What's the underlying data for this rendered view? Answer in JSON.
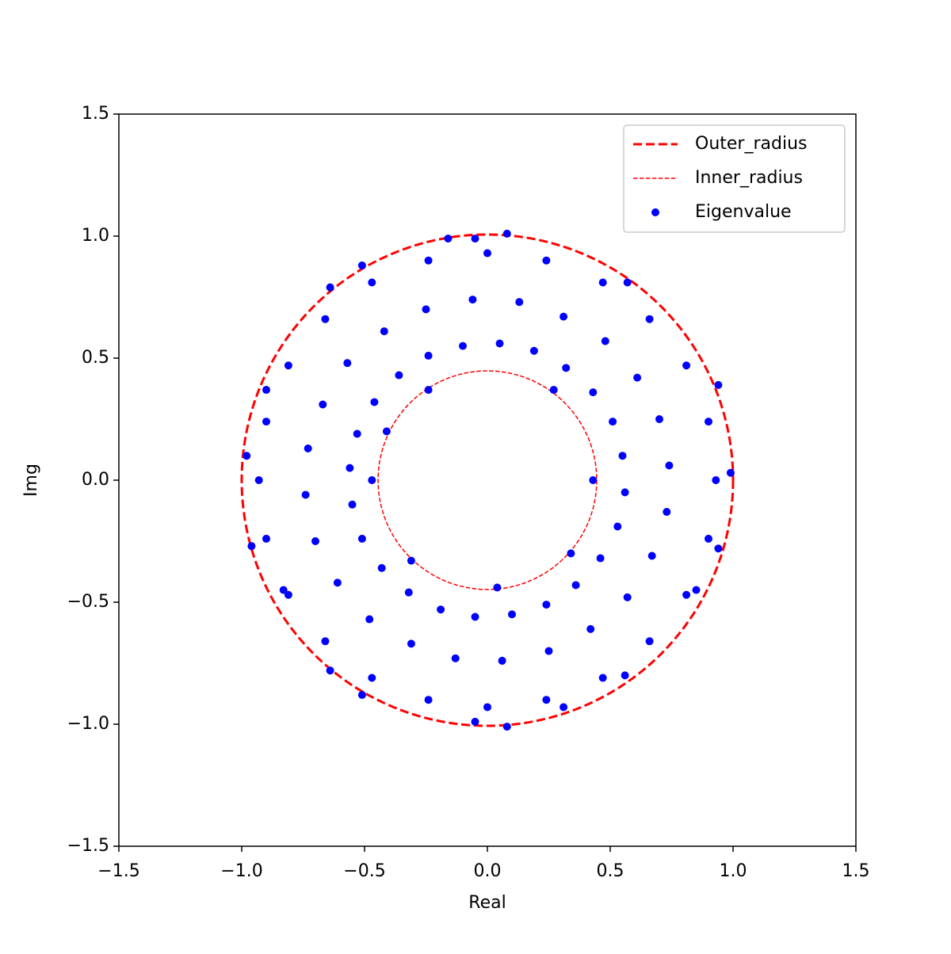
{
  "chart_data": {
    "type": "scatter",
    "xlabel": "Real",
    "ylabel": "Img",
    "xlim": [
      -1.5,
      1.5
    ],
    "ylim": [
      -1.5,
      1.5
    ],
    "xticks": [
      {
        "value": -1.5,
        "label": "−1.5"
      },
      {
        "value": -1,
        "label": "−1.0"
      },
      {
        "value": -0.5,
        "label": "−0.5"
      },
      {
        "value": 0,
        "label": "0.0"
      },
      0.5,
      {
        "value": 1,
        "label": "1.0"
      },
      1.5
    ],
    "yticks": [
      {
        "value": -1.5,
        "label": "−1.5"
      },
      {
        "value": -1,
        "label": "−1.0"
      },
      {
        "value": -0.5,
        "label": "−0.5"
      },
      {
        "value": 0,
        "label": "0.0"
      },
      0.5,
      {
        "value": 1,
        "label": "1.0"
      },
      1.5
    ],
    "legend": "upper right",
    "circles": [
      {
        "name": "Outer_radius",
        "color": "#ff0000",
        "radius": 1,
        "dash": "dashed",
        "width": 3
      },
      {
        "name": "Inner_radius",
        "color": "#ff0000",
        "radius": 0.445,
        "dash": "dashed",
        "width": 1.5
      }
    ],
    "series": [
      {
        "name": "Eigenvalue",
        "color": "#0000ff",
        "x": [
          -0.05,
          0.08,
          -0.16,
          -0.98,
          0.99,
          0.08,
          -0.05,
          -0.9,
          -0.64,
          -0.51,
          0.57,
          0.94,
          0.94,
          0.85,
          0.56,
          0.31,
          -0.51,
          -0.64,
          -0.83,
          -0.96,
          -0.41,
          -0.47,
          0.43,
          0.04,
          -0.24,
          0.27,
          0.34,
          -0.31,
          0.93,
          0.9,
          0.81,
          0.66,
          0.47,
          0.24,
          0,
          -0.24,
          -0.47,
          -0.66,
          -0.81,
          -0.9,
          -0.93,
          -0.9,
          -0.81,
          -0.66,
          -0.47,
          -0.24,
          0,
          0.24,
          0.47,
          0.66,
          0.81,
          0.9,
          0.74,
          0.7,
          0.61,
          0.48,
          0.31,
          0.13,
          -0.06,
          -0.25,
          -0.42,
          -0.57,
          -0.67,
          -0.73,
          -0.74,
          -0.7,
          -0.61,
          -0.48,
          -0.31,
          -0.13,
          0.06,
          0.25,
          0.42,
          0.57,
          0.67,
          0.73,
          0.55,
          0.51,
          0.43,
          0.32,
          0.19,
          0.05,
          -0.1,
          -0.24,
          -0.36,
          -0.46,
          -0.53,
          -0.56,
          -0.55,
          -0.51,
          -0.43,
          -0.32,
          -0.19,
          -0.05,
          0.1,
          0.24,
          0.36,
          0.46,
          0.53,
          0.56
        ],
        "y": [
          0.99,
          1.01,
          0.99,
          0.1,
          0.03,
          -1.01,
          -0.99,
          0.37,
          0.79,
          0.88,
          0.81,
          0.39,
          -0.28,
          -0.45,
          -0.8,
          -0.93,
          -0.88,
          -0.78,
          -0.45,
          -0.27,
          0.2,
          0.0,
          0,
          -0.44,
          0.37,
          0.37,
          -0.3,
          -0.33,
          0,
          0.24,
          0.47,
          0.66,
          0.81,
          0.9,
          0.93,
          0.9,
          0.81,
          0.66,
          0.47,
          0.24,
          0,
          -0.24,
          -0.47,
          -0.66,
          -0.81,
          -0.9,
          -0.93,
          -0.9,
          -0.81,
          -0.66,
          -0.47,
          -0.24,
          0.06,
          0.25,
          0.42,
          0.57,
          0.67,
          0.73,
          0.74,
          0.7,
          0.61,
          0.48,
          0.31,
          0.13,
          -0.06,
          -0.25,
          -0.42,
          -0.57,
          -0.67,
          -0.73,
          -0.74,
          -0.7,
          -0.61,
          -0.48,
          -0.31,
          -0.13,
          0.1,
          0.24,
          0.36,
          0.46,
          0.53,
          0.56,
          0.55,
          0.51,
          0.43,
          0.32,
          0.19,
          0.05,
          -0.1,
          -0.24,
          -0.36,
          -0.46,
          -0.53,
          -0.56,
          -0.55,
          -0.51,
          -0.43,
          -0.32,
          -0.19,
          -0.05
        ]
      }
    ]
  }
}
